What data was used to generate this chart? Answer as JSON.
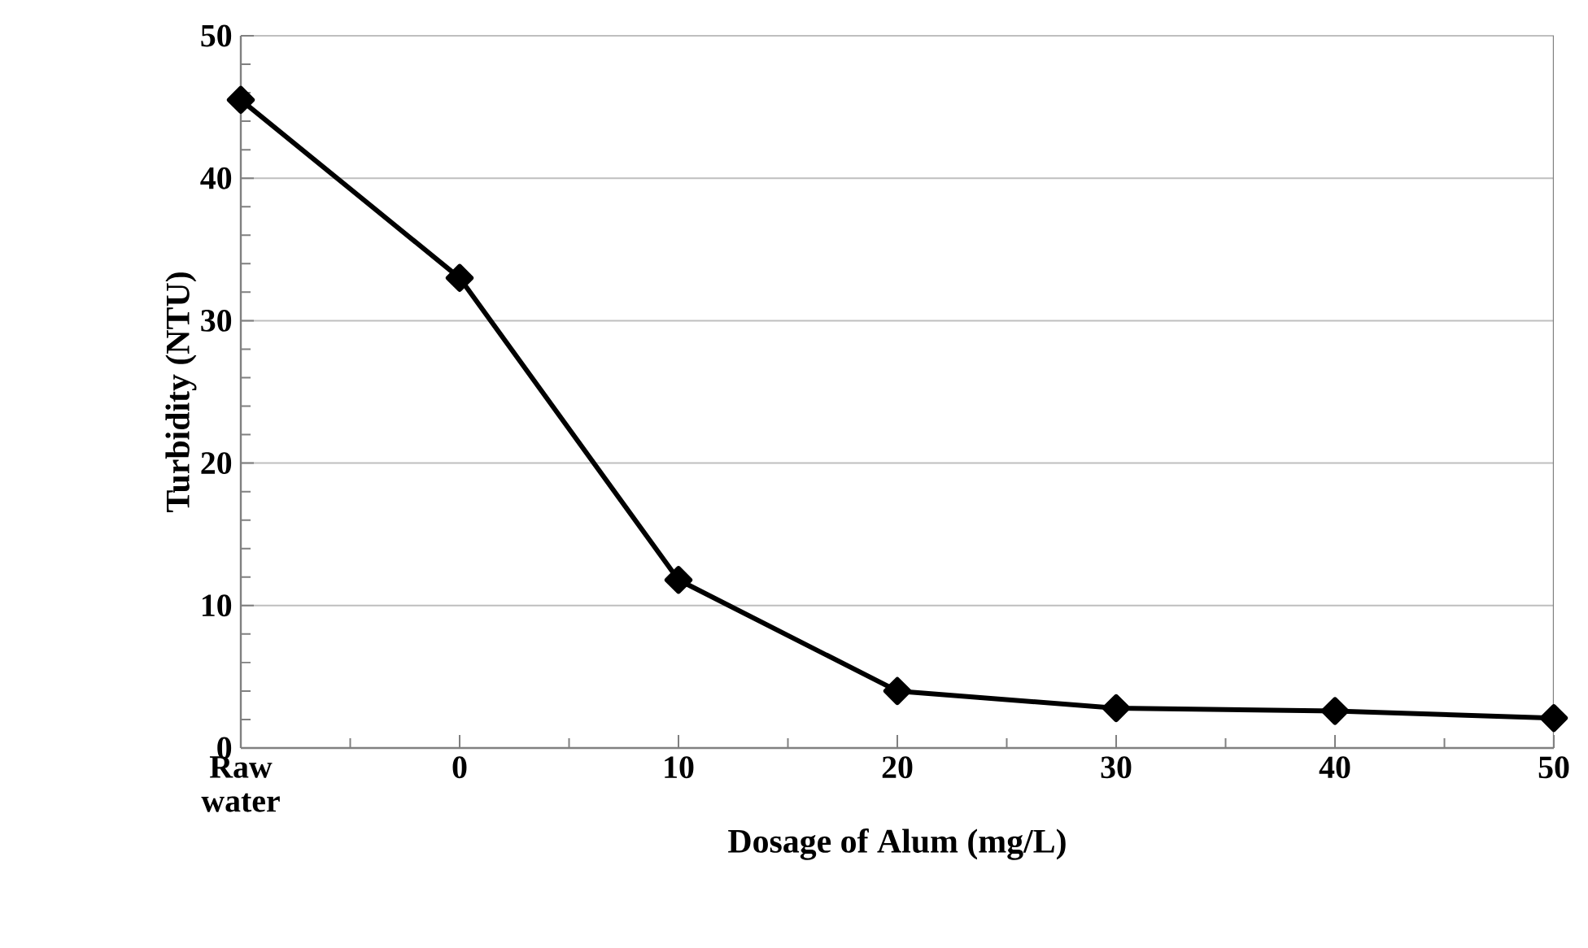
{
  "chart_data": {
    "type": "line",
    "xlabel": "Dosage of Alum (mg/L)",
    "ylabel": "Turbidity (NTU)",
    "categories": [
      "Raw water",
      "0",
      "10",
      "20",
      "30",
      "40",
      "50"
    ],
    "series": [
      {
        "color": "#000000",
        "values": [
          45.5,
          33.0,
          11.8,
          4.0,
          2.8,
          2.6,
          2.1
        ]
      }
    ],
    "ylim": [
      0,
      50
    ],
    "yticks": [
      0,
      10,
      20,
      30,
      40,
      50
    ],
    "grid": "y",
    "marker": "diamond",
    "line_style": "solid"
  }
}
